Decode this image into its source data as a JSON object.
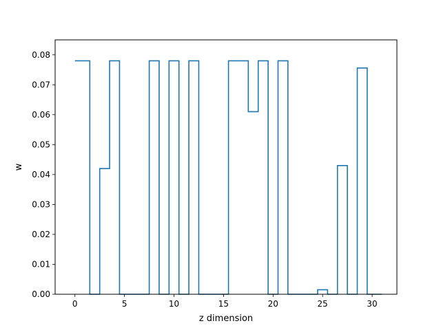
{
  "chart_data": {
    "type": "line",
    "step": "mid",
    "xlabel": "z dimension",
    "ylabel": "w",
    "xlim": [
      -2,
      32.5
    ],
    "ylim": [
      0.0,
      0.085
    ],
    "x_ticks": [
      0,
      5,
      10,
      15,
      20,
      25,
      30
    ],
    "y_ticks": [
      0.0,
      0.01,
      0.02,
      0.03,
      0.04,
      0.05,
      0.06,
      0.07,
      0.08
    ],
    "x_tick_labels": [
      "0",
      "5",
      "10",
      "15",
      "20",
      "25",
      "30"
    ],
    "y_tick_labels": [
      "0.00",
      "0.01",
      "0.02",
      "0.03",
      "0.04",
      "0.05",
      "0.06",
      "0.07",
      "0.08"
    ],
    "grid": false,
    "color": "#1f77b4",
    "series": [
      {
        "x": [
          0,
          1,
          2,
          3,
          4,
          5,
          6,
          7,
          8,
          9,
          10,
          11,
          12,
          13,
          14,
          15,
          16,
          17,
          18,
          19,
          20,
          21,
          22,
          23,
          24,
          25,
          26,
          27,
          28,
          29,
          30,
          31
        ],
        "values": [
          0.078,
          0.078,
          0.0,
          0.042,
          0.078,
          0.0,
          0.0,
          0.0,
          0.078,
          0.0,
          0.078,
          0.0,
          0.078,
          0.0,
          0.0,
          0.0,
          0.078,
          0.078,
          0.061,
          0.078,
          0.0,
          0.078,
          0.0,
          0.0,
          0.0,
          0.0015,
          0.0,
          0.043,
          0.0,
          0.0756,
          0.0,
          0.0
        ]
      }
    ]
  }
}
